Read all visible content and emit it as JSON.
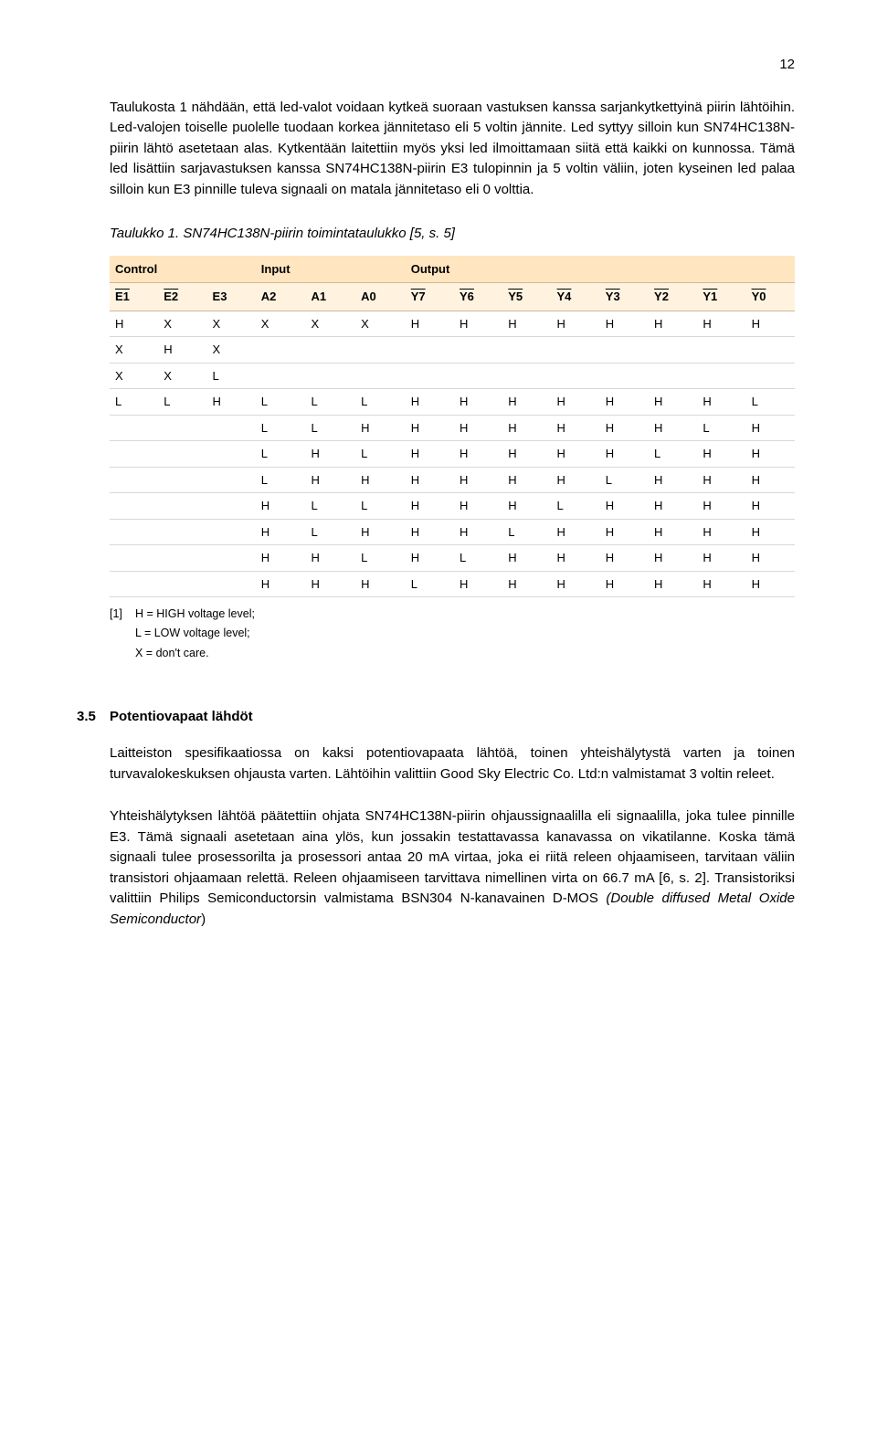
{
  "page_number": "12",
  "paragraph1": "Taulukosta 1 nähdään, että led-valot voidaan kytkeä suoraan vastuksen kanssa sarjankytkettyinä piirin lähtöihin. Led-valojen toiselle puolelle tuodaan korkea jännitetaso eli 5 voltin jännite. Led syttyy silloin kun SN74HC138N-piirin lähtö asetetaan alas. Kytkentään laitettiin myös yksi led ilmoittamaan siitä että kaikki on kunnossa. Tämä led lisättiin sarjavastuksen kanssa SN74HC138N-piirin E3 tulopinnin ja 5 voltin väliin, joten kyseinen led palaa silloin kun E3 pinnille tuleva signaali on matala jännitetaso eli 0 volttia.",
  "caption": "Taulukko 1. SN74HC138N-piirin toimintataulukko [5, s. 5]",
  "table": {
    "group_headers": [
      "Control",
      "Input",
      "Output"
    ],
    "group_spans": [
      3,
      3,
      8
    ],
    "sub_headers_plain": [
      "E1",
      "E2",
      "E3",
      "A2",
      "A1",
      "A0",
      "Y7",
      "Y6",
      "Y5",
      "Y4",
      "Y3",
      "Y2",
      "Y1",
      "Y0"
    ],
    "sub_headers_overline": [
      true,
      true,
      false,
      false,
      false,
      false,
      true,
      true,
      true,
      true,
      true,
      true,
      true,
      true
    ],
    "rows": [
      [
        "H",
        "X",
        "X",
        "X",
        "X",
        "X",
        "H",
        "H",
        "H",
        "H",
        "H",
        "H",
        "H",
        "H"
      ],
      [
        "X",
        "H",
        "X",
        "",
        "",
        "",
        "",
        "",
        "",
        "",
        "",
        "",
        "",
        ""
      ],
      [
        "X",
        "X",
        "L",
        "",
        "",
        "",
        "",
        "",
        "",
        "",
        "",
        "",
        "",
        ""
      ],
      [
        "L",
        "L",
        "H",
        "L",
        "L",
        "L",
        "H",
        "H",
        "H",
        "H",
        "H",
        "H",
        "H",
        "L"
      ],
      [
        "",
        "",
        "",
        "L",
        "L",
        "H",
        "H",
        "H",
        "H",
        "H",
        "H",
        "H",
        "L",
        "H"
      ],
      [
        "",
        "",
        "",
        "L",
        "H",
        "L",
        "H",
        "H",
        "H",
        "H",
        "H",
        "L",
        "H",
        "H"
      ],
      [
        "",
        "",
        "",
        "L",
        "H",
        "H",
        "H",
        "H",
        "H",
        "H",
        "L",
        "H",
        "H",
        "H"
      ],
      [
        "",
        "",
        "",
        "H",
        "L",
        "L",
        "H",
        "H",
        "H",
        "L",
        "H",
        "H",
        "H",
        "H"
      ],
      [
        "",
        "",
        "",
        "H",
        "L",
        "H",
        "H",
        "H",
        "L",
        "H",
        "H",
        "H",
        "H",
        "H"
      ],
      [
        "",
        "",
        "",
        "H",
        "H",
        "L",
        "H",
        "L",
        "H",
        "H",
        "H",
        "H",
        "H",
        "H"
      ],
      [
        "",
        "",
        "",
        "H",
        "H",
        "H",
        "L",
        "H",
        "H",
        "H",
        "H",
        "H",
        "H",
        "H"
      ]
    ],
    "header_bg": "#ffe6c0",
    "subheader_bg": "#fff3e0",
    "border_color": "#d8d8d8"
  },
  "legend": {
    "idx": "[1]",
    "line1": "H = HIGH voltage level;",
    "line2": "L = LOW voltage level;",
    "line3": "X = don't care."
  },
  "section": {
    "number": "3.5",
    "title": "Potentiovapaat lähdöt"
  },
  "paragraph2": "Laitteiston spesifikaatiossa on kaksi potentiovapaata lähtöä, toinen yhteishälytystä varten ja toinen turvavalokeskuksen ohjausta varten. Lähtöihin valittiin Good Sky Electric Co. Ltd:n valmistamat 3 voltin releet.",
  "paragraph3_parts": {
    "a": "Yhteishälytyksen lähtöä päätettiin ohjata SN74HC138N-piirin ohjaussignaalilla eli signaalilla, joka tulee pinnille E3. Tämä signaali asetetaan aina ylös, kun jossakin testattavassa kanavassa on vikatilanne. Koska tämä signaali tulee prosessorilta ja prosessori antaa 20 mA virtaa, joka ei riitä releen ohjaamiseen, tarvitaan väliin transistori ohjaamaan relettä. Releen ohjaamiseen tarvittava nimellinen virta on 66.7 mA [6, s. 2]. Transistoriksi valittiin Philips Semiconductorsin valmistama BSN304 N-kanavainen D-MOS ",
    "italic": "(Double diffused Metal Oxide Semiconductor",
    "b": ")"
  }
}
